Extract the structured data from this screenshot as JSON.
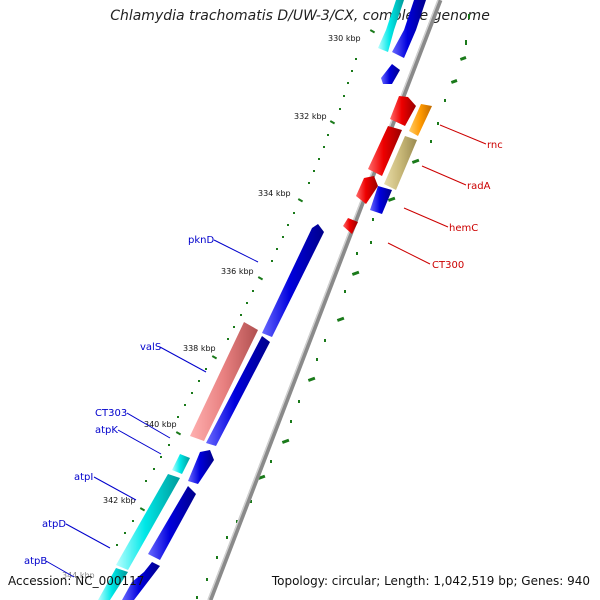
{
  "title": "Chlamydia trachomatis D/UW-3/CX, complete genome",
  "accession_text": "Accession: NC_000117",
  "summary_text": "Topology: circular; Length: 1,042,519 bp; Genes: 940",
  "scale_labels": [
    "330 kbp",
    "332 kbp",
    "334 kbp",
    "336 kbp",
    "338 kbp",
    "340 kbp",
    "342 kbp",
    "344 kbp"
  ],
  "genes_right": [
    {
      "name": "rnc",
      "color": "#cc0000"
    },
    {
      "name": "radA",
      "color": "#cc0000"
    },
    {
      "name": "hemC",
      "color": "#cc0000"
    },
    {
      "name": "CT300",
      "color": "#cc0000"
    }
  ],
  "genes_left": [
    {
      "name": "pknD",
      "color": "#0000cc"
    },
    {
      "name": "valS",
      "color": "#0000cc"
    },
    {
      "name": "CT303",
      "color": "#0000cc"
    },
    {
      "name": "atpK",
      "color": "#0000cc"
    },
    {
      "name": "atpI",
      "color": "#0000cc"
    },
    {
      "name": "atpD",
      "color": "#0000cc"
    },
    {
      "name": "atpB",
      "color": "#0000cc"
    }
  ],
  "colors": {
    "forward_cds": "#0000dd",
    "reverse_cds": "#ee0000",
    "rrna": "#00e0e0",
    "orange_feature": "#ff9900",
    "olive_feature": "#c8b878",
    "pink_feature": "#e88080",
    "backbone": "#8a8a8a",
    "gc_skew": "#1a7a1a"
  }
}
